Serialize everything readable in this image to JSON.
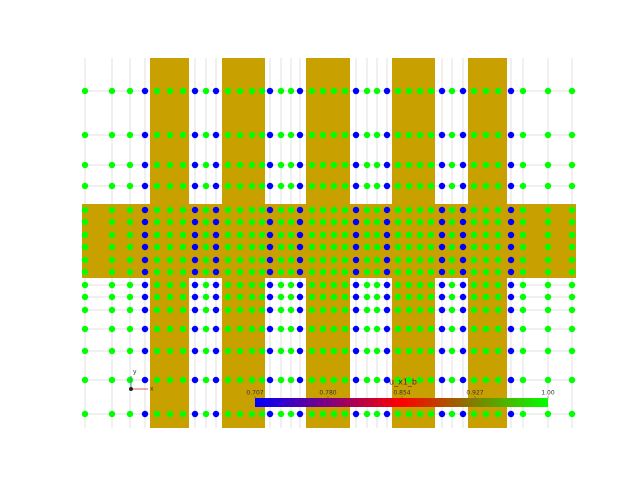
{
  "colorbar": {
    "title": "u_x1_b",
    "ticks": [
      {
        "value": 0.707,
        "label": "0.707"
      },
      {
        "value": 0.78,
        "label": "0.780"
      },
      {
        "value": 0.854,
        "label": "0.854"
      },
      {
        "value": 0.927,
        "label": "0.927"
      },
      {
        "value": 1.0,
        "label": "1.00"
      }
    ],
    "range": [
      0.707,
      1.0
    ],
    "colors": [
      "#0000ff",
      "#ff0000",
      "#00ff00"
    ]
  },
  "axes_triad": {
    "x": "x",
    "y": "y"
  }
}
